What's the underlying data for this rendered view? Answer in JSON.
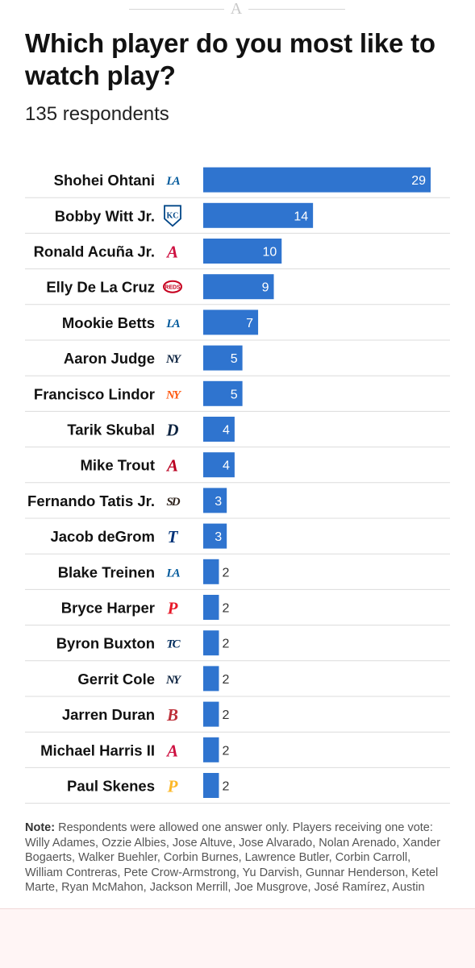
{
  "header": {
    "logo_glyph": "A"
  },
  "chart_data": {
    "type": "bar",
    "orientation": "horizontal",
    "title": "Which player do you most like to watch play?",
    "subtitle": "135 respondents",
    "bar_color": "#2f74cf",
    "categories": [
      "Shohei Ohtani",
      "Bobby Witt Jr.",
      "Ronald Acuña Jr.",
      "Elly De La Cruz",
      "Mookie Betts",
      "Aaron Judge",
      "Francisco Lindor",
      "Tarik Skubal",
      "Mike Trout",
      "Fernando Tatis Jr.",
      "Jacob deGrom",
      "Blake Treinen",
      "Bryce Harper",
      "Byron Buxton",
      "Gerrit Cole",
      "Jarren Duran",
      "Michael Harris II",
      "Paul Skenes"
    ],
    "values": [
      29,
      14,
      10,
      9,
      7,
      5,
      5,
      4,
      4,
      3,
      3,
      2,
      2,
      2,
      2,
      2,
      2,
      2
    ],
    "teams": [
      {
        "name": "dodgers-logo-icon",
        "glyph": "LA",
        "color": "#005a9c"
      },
      {
        "name": "royals-logo-icon",
        "glyph": "KC",
        "color": "#004687"
      },
      {
        "name": "braves-logo-icon",
        "glyph": "A",
        "color": "#ce1141"
      },
      {
        "name": "reds-logo-icon",
        "glyph": "REDS",
        "color": "#c6011f"
      },
      {
        "name": "dodgers-logo-icon",
        "glyph": "LA",
        "color": "#005a9c"
      },
      {
        "name": "yankees-logo-icon",
        "glyph": "NY",
        "color": "#0c2340"
      },
      {
        "name": "mets-logo-icon",
        "glyph": "NY",
        "color": "#ff5910"
      },
      {
        "name": "tigers-logo-icon",
        "glyph": "D",
        "color": "#0c2340"
      },
      {
        "name": "angels-logo-icon",
        "glyph": "A",
        "color": "#ba0021"
      },
      {
        "name": "padres-logo-icon",
        "glyph": "SD",
        "color": "#2f241d"
      },
      {
        "name": "rangers-logo-icon",
        "glyph": "T",
        "color": "#003278"
      },
      {
        "name": "dodgers-logo-icon",
        "glyph": "LA",
        "color": "#005a9c"
      },
      {
        "name": "phillies-logo-icon",
        "glyph": "P",
        "color": "#e81828"
      },
      {
        "name": "twins-logo-icon",
        "glyph": "TC",
        "color": "#002b5c"
      },
      {
        "name": "yankees-logo-icon",
        "glyph": "NY",
        "color": "#0c2340"
      },
      {
        "name": "red-sox-logo-icon",
        "glyph": "B",
        "color": "#bd3039"
      },
      {
        "name": "braves-logo-icon",
        "glyph": "A",
        "color": "#ce1141"
      },
      {
        "name": "pirates-logo-icon",
        "glyph": "P",
        "color": "#fdb827"
      }
    ],
    "xlim": [
      0,
      29
    ],
    "grid": false,
    "legend": "none"
  },
  "note": {
    "label": "Note:",
    "text": " Respondents were allowed one answer only. Players receiving one vote: Willy Adames, Ozzie Albies, Jose Altuve, Jose Alvarado, Nolan Arenado, Xander Bogaerts, Walker Buehler, Corbin Burnes, Lawrence Butler, Corbin Carroll, William Contreras, Pete Crow-Armstrong, Yu Darvish, Gunnar Henderson, Ketel Marte, Ryan McMahon, Jackson Merrill, Joe Musgrove, José Ramírez, Austin"
  }
}
